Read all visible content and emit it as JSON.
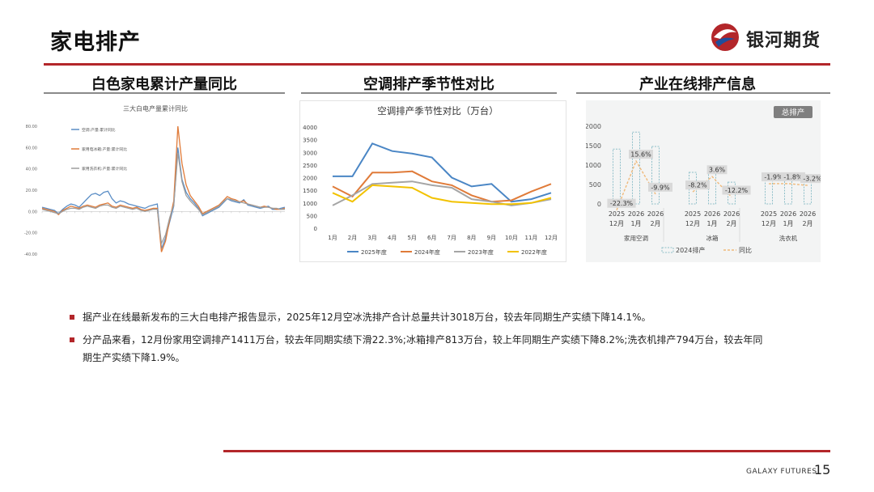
{
  "header": {
    "title": "家电排产",
    "brand_name": "银河期货",
    "brand_color": "#b3262a"
  },
  "sections": [
    {
      "title": "白色家电累计产量同比"
    },
    {
      "title": "空调排产季节性对比"
    },
    {
      "title": "产业在线排产信息"
    }
  ],
  "chart_data": [
    {
      "type": "line",
      "title": "三大白电产量累计同比",
      "y_ticks": [
        "80.00",
        "60.00",
        "40.00",
        "20.00",
        "0.00",
        "-20.00",
        "-40.00"
      ],
      "ylim": [
        -40,
        80
      ],
      "series": [
        {
          "name": "空调:产量:累计同比",
          "color": "#5b8ec6"
        },
        {
          "name": "家用电冰箱:产量:累计同比",
          "color": "#e07b39"
        },
        {
          "name": "家用洗衣机:产量:累计同比",
          "color": "#9e9e9e"
        }
      ],
      "x_count": 60,
      "values": [
        [
          4,
          3,
          2,
          1,
          -2,
          2,
          5,
          7,
          6,
          4,
          8,
          12,
          16,
          17,
          15,
          18,
          19,
          12,
          8,
          10,
          9,
          7,
          6,
          5,
          4,
          3,
          5,
          6,
          7,
          -35,
          -25,
          -10,
          5,
          60,
          30,
          18,
          12,
          8,
          3,
          -4,
          -2,
          0,
          2,
          4,
          8,
          12,
          10,
          9,
          8,
          11,
          6,
          5,
          4,
          3,
          4,
          5,
          2,
          2,
          3,
          4
        ],
        [
          3,
          2,
          1,
          0,
          -3,
          1,
          3,
          5,
          4,
          3,
          5,
          6,
          5,
          4,
          6,
          7,
          8,
          5,
          4,
          6,
          5,
          4,
          3,
          4,
          2,
          1,
          2,
          3,
          3,
          -38,
          -28,
          -8,
          10,
          80,
          45,
          25,
          15,
          10,
          5,
          -2,
          0,
          2,
          4,
          6,
          10,
          14,
          12,
          11,
          9,
          10,
          7,
          6,
          5,
          4,
          5,
          4,
          3,
          2,
          2,
          3
        ],
        [
          2,
          1,
          0,
          -1,
          -2,
          0,
          2,
          3,
          3,
          2,
          4,
          5,
          4,
          3,
          5,
          6,
          6,
          4,
          3,
          5,
          4,
          3,
          2,
          3,
          1,
          0,
          1,
          2,
          2,
          -30,
          -22,
          -6,
          6,
          55,
          28,
          15,
          10,
          6,
          2,
          -3,
          -1,
          1,
          3,
          5,
          9,
          12,
          11,
          10,
          9,
          8,
          7,
          6,
          5,
          4,
          4,
          4,
          3,
          3,
          2,
          2
        ]
      ]
    },
    {
      "type": "line",
      "title": "空调排产季节性对比（万台）",
      "categories": [
        "1月",
        "2月",
        "3月",
        "4月",
        "5月",
        "6月",
        "7月",
        "8月",
        "9月",
        "10月",
        "11月",
        "12月"
      ],
      "y_ticks": [
        "4000",
        "3500",
        "3000",
        "2500",
        "2000",
        "1500",
        "1000",
        "500",
        "0"
      ],
      "ylim": [
        0,
        4000
      ],
      "series": [
        {
          "name": "2025年度",
          "color": "#4a86c5",
          "values": [
            2050,
            2050,
            3350,
            3050,
            2950,
            2800,
            2000,
            1650,
            1750,
            1050,
            1150,
            1400
          ]
        },
        {
          "name": "2024年度",
          "color": "#e07b39",
          "values": [
            1650,
            1250,
            2200,
            2200,
            2250,
            1850,
            1700,
            1300,
            1050,
            1100,
            1450,
            1750
          ]
        },
        {
          "name": "2023年度",
          "color": "#a5a5a5",
          "values": [
            900,
            1300,
            1750,
            1800,
            1850,
            1700,
            1600,
            1150,
            1050,
            900,
            1000,
            1150
          ]
        },
        {
          "name": "2022年度",
          "color": "#f2c200",
          "values": [
            1400,
            1050,
            1700,
            1650,
            1600,
            1200,
            1050,
            1000,
            950,
            950,
            1000,
            1200
          ]
        }
      ]
    },
    {
      "type": "bar",
      "title": "总排产",
      "y_ticks": [
        "2000",
        "1500",
        "1000",
        "500",
        "0"
      ],
      "ylim": [
        0,
        2000
      ],
      "groups": [
        {
          "name": "家用空调",
          "months": [
            "2025\n12月",
            "2026\n1月",
            "2026\n2月"
          ],
          "bars_2024": [
            1411,
            1850,
            1480
          ],
          "yoy_labels": [
            "-22.3%",
            "15.6%",
            "-9.9%"
          ],
          "yoy_values": [
            -22.3,
            15.6,
            -9.9
          ]
        },
        {
          "name": "冰箱",
          "months": [
            "2025\n12月",
            "2026\n1月",
            "2026\n2月"
          ],
          "bars_2024": [
            813,
            800,
            560
          ],
          "yoy_labels": [
            "-8.2%",
            "3.6%",
            "-12.2%"
          ],
          "yoy_values": [
            -8.2,
            3.6,
            -12.2
          ]
        },
        {
          "name": "洗衣机",
          "months": [
            "2025\n12月",
            "2026\n1月",
            "2026\n2月"
          ],
          "bars_2024": [
            794,
            760,
            680
          ],
          "yoy_labels": [
            "-1.9%",
            "-1.8%",
            "-3.2%"
          ],
          "yoy_values": [
            -1.9,
            -1.8,
            -3.2
          ]
        }
      ],
      "legend": [
        "2024排产",
        "同比"
      ]
    }
  ],
  "bullets": [
    "据产业在线最新发布的三大白电排产报告显示，2025年12月空冰洗排产合计总量共计3018万台，较去年同期生产实绩下降14.1%。",
    "分产品来看，12月份家用空调排产1411万台，较去年同期实绩下滑22.3%;冰箱排产813万台，较上年同期生产实绩下降8.2%;洗衣机排产794万台，较去年同",
    "期生产实绩下降1.9%。"
  ],
  "footer": {
    "brand": "GALAXY FUTURES",
    "page_number": "15"
  }
}
